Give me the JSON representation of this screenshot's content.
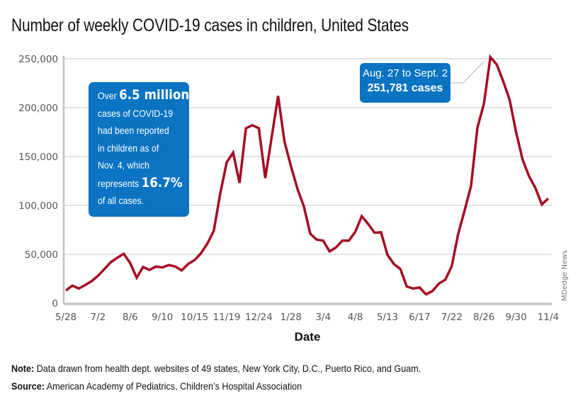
{
  "chart_data": {
    "type": "line",
    "title": "Number of weekly COVID-19 cases in children, United States",
    "xlabel": "Date",
    "ylabel": "",
    "ylim": [
      0,
      250000
    ],
    "grid": true,
    "yticks": [
      0,
      50000,
      100000,
      150000,
      200000,
      250000
    ],
    "ytick_labels": [
      "0",
      "50,000",
      "100,000",
      "150,000",
      "200,000",
      "250,000"
    ],
    "xtick_labels": [
      "5/28",
      "7/2",
      "8/6",
      "9/10",
      "10/15",
      "11/19",
      "12/24",
      "1/28",
      "3/4",
      "4/8",
      "5/13",
      "6/17",
      "7/22",
      "8/26",
      "9/30",
      "11/4"
    ],
    "xtick_week_index": [
      0,
      5,
      10,
      15,
      20,
      25,
      30,
      35,
      40,
      45,
      50,
      55,
      60,
      65,
      70,
      75
    ],
    "series": [
      {
        "name": "Weekly cases in children",
        "color": "#a50d23",
        "values": [
          13000,
          18000,
          15000,
          18500,
          22500,
          28000,
          35000,
          42000,
          46500,
          50500,
          41000,
          26000,
          37000,
          34000,
          37500,
          36500,
          39000,
          37500,
          33500,
          40000,
          44000,
          51000,
          61000,
          74000,
          112000,
          144000,
          154000,
          123000,
          179000,
          182000,
          179000,
          128000,
          170000,
          212000,
          165000,
          140000,
          117000,
          99000,
          71000,
          65000,
          64000,
          53000,
          57000,
          64000,
          64000,
          73000,
          89000,
          81000,
          72000,
          72500,
          49500,
          40000,
          35000,
          17000,
          15000,
          16000,
          9000,
          12500,
          20000,
          24000,
          38000,
          71000,
          95000,
          120000,
          180000,
          204000,
          251781,
          244000,
          227000,
          208000,
          175000,
          147000,
          130000,
          118000,
          101000,
          107000
        ]
      }
    ],
    "annotations": [
      {
        "text_lines": [
          "Over",
          "6.5 million",
          "cases of COVID-19",
          "had been reported",
          "in children as of",
          "Nov. 4, which",
          "represents",
          "16.7%",
          "of all cases."
        ]
      },
      {
        "text_lines": [
          "Aug. 27 to Sept. 2",
          "251,781 cases"
        ],
        "points_to_week_index": 66
      }
    ],
    "credit": "MDedge News"
  },
  "info_box": {
    "l1_prefix": "Over ",
    "l1_big": "6.5 million",
    "l2": "cases of COVID-19",
    "l3": "had been reported",
    "l4": "in children as of",
    "l5": "Nov. 4, which",
    "l6_prefix": "represents ",
    "l6_big": "16.7%",
    "l7": "of all cases."
  },
  "peak_box": {
    "line1": "Aug. 27 to Sept. 2",
    "line2": "251,781 cases"
  },
  "footer": {
    "note_label": "Note:",
    "note_text": " Data drawn from health dept. websites of 49 states, New York City, D.C., Puerto Rico, and Guam.",
    "source_label": "Source:",
    "source_text": " American Academy of Pediatrics, Children’s Hospital Association"
  }
}
